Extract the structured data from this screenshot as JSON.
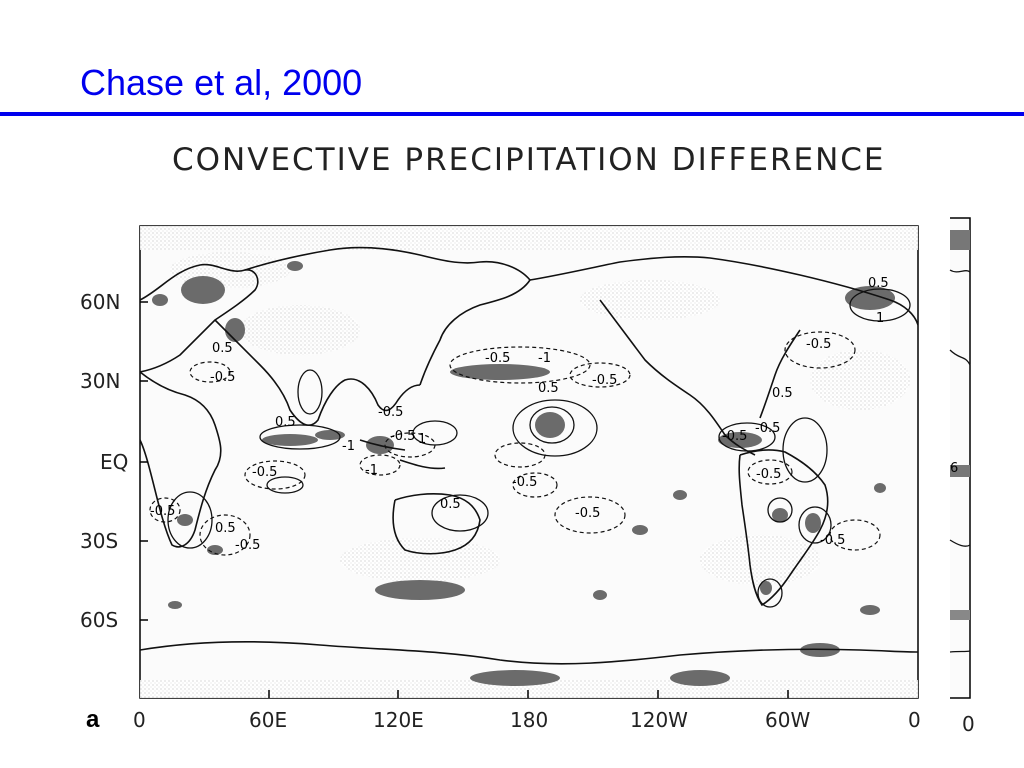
{
  "slide": {
    "title": "Chase et al, 2000",
    "title_color": "#0000ee"
  },
  "figure": {
    "title": "CONVECTIVE PRECIPITATION DIFFERENCE",
    "panel_letter": "a",
    "lat_labels": [
      "60N",
      "30N",
      "EQ",
      "30S",
      "60S"
    ],
    "lon_labels": [
      "0",
      "60E",
      "120E",
      "180",
      "120W",
      "60W",
      "0"
    ],
    "partial_panel_lon_label": "0",
    "partial_panel_contour_label": "6",
    "contour_labels": [
      "-0.5",
      "-0.5",
      "0.5",
      "-0.5",
      "-0.5",
      "-0.5",
      "0.5",
      "-1",
      "-0.5",
      "0.5",
      "1",
      "-1",
      "-0.5",
      "-0.5",
      "-1",
      "-0.5",
      "0.5",
      "-0.5",
      "0.5",
      "-0.5",
      "0.5",
      "-0.5",
      "-0.5",
      "0.5",
      "1",
      "-0.5",
      "-0.5"
    ]
  }
}
